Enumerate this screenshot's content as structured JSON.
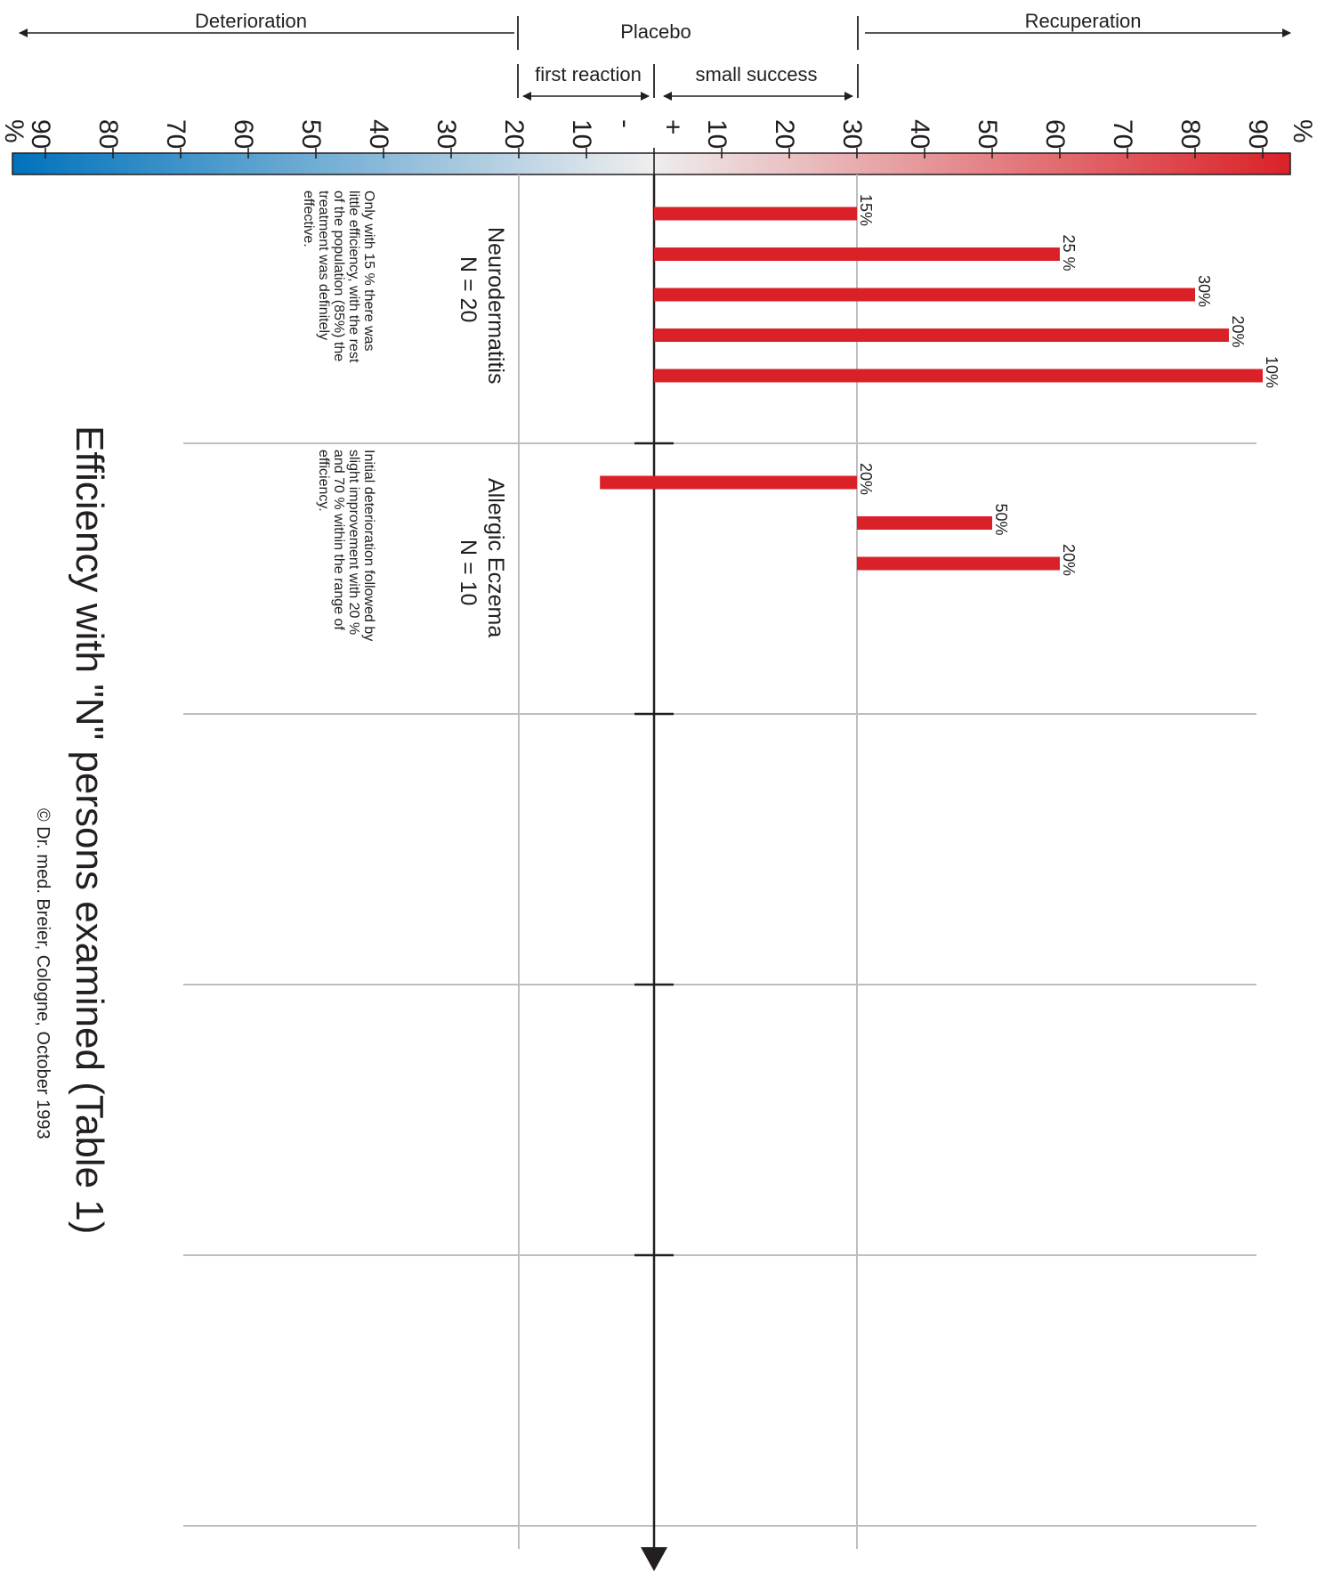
{
  "chart_data": {
    "type": "bar",
    "title": "Efficiency with \"N\" persons examined (Table 1)",
    "copyright": "© Dr. med. Breier, Cologne, October 1993",
    "scale": {
      "left_tick_labels": [
        "90",
        "80",
        "70",
        "60",
        "50",
        "40",
        "30",
        "20",
        "10",
        "-"
      ],
      "right_tick_labels": [
        "+",
        "10",
        "20",
        "30",
        "40",
        "50",
        "60",
        "70",
        "80",
        "90"
      ],
      "unit_label": "%",
      "range": [
        -95,
        95
      ],
      "gradient": {
        "negative_color": "#0072bc",
        "center_color": "#eeeeee",
        "positive_color": "#da2128"
      }
    },
    "zones": {
      "deterioration": "Deterioration",
      "placebo": "Placebo",
      "recuperation": "Recuperation",
      "first_reaction": "first reaction",
      "small_success": "small success"
    },
    "bar_color": "#da2128",
    "groups": [
      {
        "name": "Neurodermatitis",
        "n_label": "N = 20",
        "note": "Only with 15 % there was little efficiency, with the rest of the population (85%) the treatment was definitely effective.",
        "bars": [
          {
            "start": 0,
            "end": 30,
            "label": "15%"
          },
          {
            "start": 0,
            "end": 60,
            "label": "25 %"
          },
          {
            "start": 0,
            "end": 80,
            "label": "30%"
          },
          {
            "start": 0,
            "end": 85,
            "label": "20%"
          },
          {
            "start": 0,
            "end": 90,
            "label": "10%"
          }
        ]
      },
      {
        "name": "Allergic Eczema",
        "n_label": "N = 10",
        "note": "Initial deterioration followed by slight improvement with 20 % and 70 % within the range of efficiency.",
        "bars": [
          {
            "start": -8,
            "end": 30,
            "label": "20%"
          },
          {
            "start": 30,
            "end": 50,
            "label": "50%"
          },
          {
            "start": 30,
            "end": 60,
            "label": "20%"
          }
        ]
      }
    ]
  }
}
